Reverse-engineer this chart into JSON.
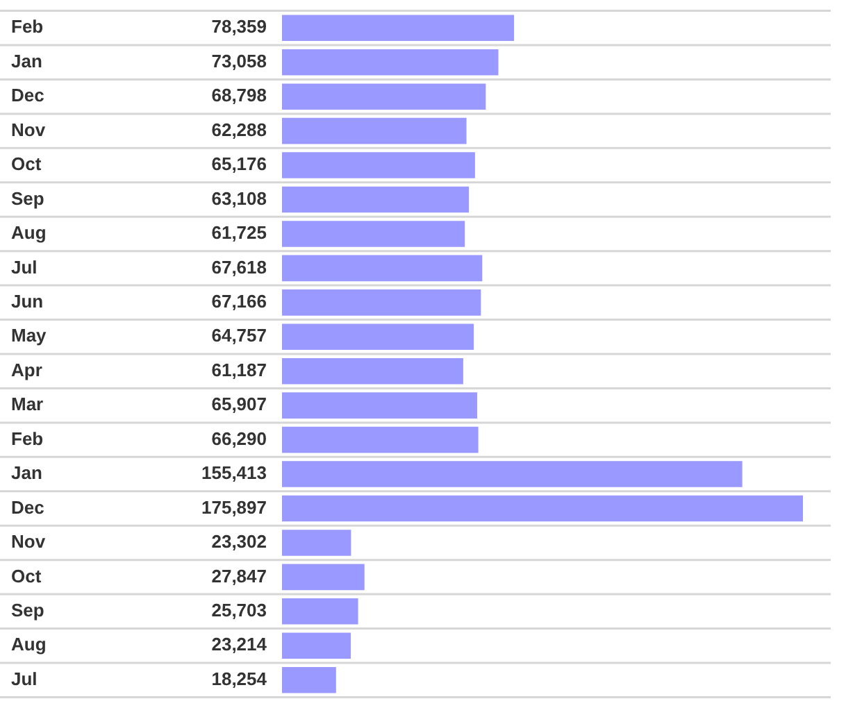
{
  "chart_data": {
    "type": "bar",
    "orientation": "horizontal",
    "categories": [
      "Feb",
      "Jan",
      "Dec",
      "Nov",
      "Oct",
      "Sep",
      "Aug",
      "Jul",
      "Jun",
      "May",
      "Apr",
      "Mar",
      "Feb",
      "Jan",
      "Dec",
      "Nov",
      "Oct",
      "Sep",
      "Aug",
      "Jul"
    ],
    "values": [
      78359,
      73058,
      68798,
      62288,
      65176,
      63108,
      61725,
      67618,
      67166,
      64757,
      61187,
      65907,
      66290,
      155413,
      175897,
      23302,
      27847,
      25703,
      23214,
      18254
    ],
    "value_labels": [
      "78,359",
      "73,058",
      "68,798",
      "62,288",
      "65,176",
      "63,108",
      "61,725",
      "67,618",
      "67,166",
      "64,757",
      "61,187",
      "65,907",
      "66,290",
      "155,413",
      "175,897",
      "23,302",
      "27,847",
      "25,703",
      "23,214",
      "18,254"
    ],
    "color": "#9999ff",
    "grid": "y",
    "tick_labels": "y"
  }
}
